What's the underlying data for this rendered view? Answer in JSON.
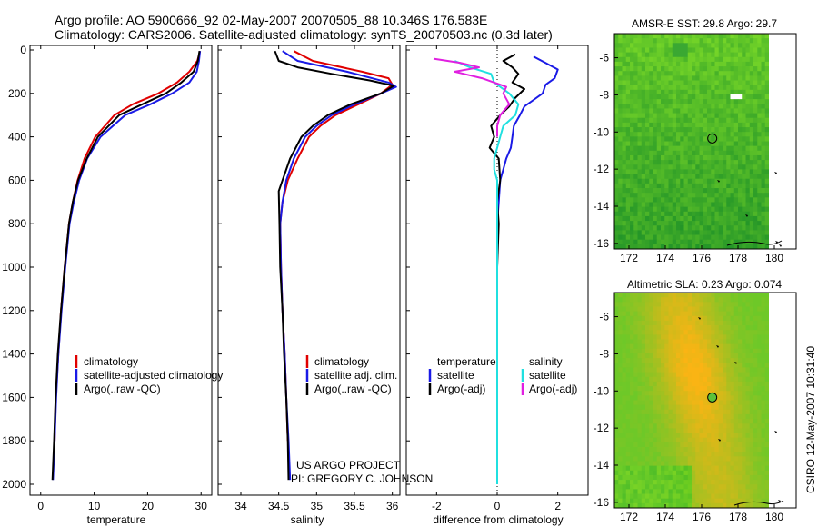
{
  "header": {
    "title_line1": "Argo profile: AO 5900666_92 02-May-2007 20070505_88 10.346S 176.583E",
    "title_line2": "Climatology: CARS2006. Satellite-adjusted climatology: synTS_20070503.nc (0.3d later)"
  },
  "side_label": "CSIRO 12-May-2007 10:31:40",
  "credit": {
    "line1": "US ARGO PROJECT",
    "line2": "PI: GREGORY C. JOHNSON"
  },
  "colors": {
    "climatology": "#e00000",
    "satellite": "#1a1ae6",
    "argo": "#000000",
    "sat_salinity": "#20e0e0",
    "argo_salinity": "#e020e0"
  },
  "chart_data": [
    {
      "type": "line",
      "id": "temperature",
      "xlabel": "temperature",
      "xlim": [
        -2,
        32
      ],
      "ylim": [
        2050,
        0
      ],
      "y_reversed": true,
      "xticks": [
        0,
        10,
        20,
        30
      ],
      "yticks": [
        0,
        200,
        400,
        600,
        800,
        1000,
        1200,
        1400,
        1600,
        1800,
        2000
      ],
      "legend": [
        "climatology",
        "satellite-adjusted climatology",
        "Argo(..raw -QC)"
      ],
      "series": [
        {
          "name": "climatology",
          "color": "#e00000",
          "depth": [
            5,
            50,
            100,
            150,
            200,
            250,
            300,
            400,
            500,
            600,
            700,
            800,
            1000,
            1200,
            1400,
            1600,
            1800
          ],
          "values": [
            29.8,
            29.3,
            27.8,
            25.5,
            22.0,
            17.2,
            13.8,
            10.2,
            8.2,
            6.9,
            6.0,
            5.3,
            4.5,
            3.8,
            3.3,
            2.8,
            2.6
          ]
        },
        {
          "name": "satellite-adjusted climatology",
          "color": "#1a1ae6",
          "depth": [
            5,
            50,
            100,
            150,
            200,
            250,
            300,
            400,
            500,
            600,
            700,
            800,
            1000,
            1200,
            1400,
            1600,
            1800,
            1980
          ],
          "values": [
            29.8,
            29.6,
            29.2,
            27.8,
            24.6,
            20.5,
            15.8,
            11.2,
            8.7,
            7.2,
            6.2,
            5.4,
            4.6,
            3.9,
            3.3,
            2.9,
            2.6,
            2.3
          ]
        },
        {
          "name": "Argo(..raw -QC)",
          "color": "#000000",
          "depth": [
            5,
            50,
            100,
            150,
            200,
            250,
            300,
            400,
            500,
            600,
            700,
            800,
            1000,
            1200,
            1400,
            1600,
            1800,
            1980
          ],
          "values": [
            29.7,
            29.4,
            28.6,
            26.3,
            23.4,
            19.0,
            14.7,
            10.7,
            8.6,
            7.0,
            6.0,
            5.3,
            4.5,
            3.8,
            3.2,
            2.8,
            2.5,
            2.2
          ]
        }
      ]
    },
    {
      "type": "line",
      "id": "salinity",
      "xlabel": "salinity",
      "xlim": [
        33.7,
        36.1
      ],
      "ylim": [
        2050,
        0
      ],
      "y_reversed": true,
      "xticks": [
        34,
        34.5,
        35,
        35.5,
        36
      ],
      "legend": [
        "climatology",
        "satellite adj. clim.",
        "Argo(..raw -QC)"
      ],
      "series": [
        {
          "name": "climatology",
          "color": "#e00000",
          "depth": [
            5,
            50,
            100,
            130,
            160,
            200,
            250,
            300,
            350,
            400,
            500,
            600,
            700,
            800,
            1000,
            1200,
            1400,
            1600,
            1800
          ],
          "values": [
            34.7,
            34.95,
            35.6,
            35.95,
            36.0,
            35.85,
            35.55,
            35.25,
            35.05,
            34.9,
            34.75,
            34.62,
            34.55,
            34.52,
            34.53,
            34.55,
            34.58,
            34.6,
            34.62
          ]
        },
        {
          "name": "satellite adj. clim.",
          "color": "#1a1ae6",
          "depth": [
            5,
            50,
            100,
            150,
            170,
            200,
            250,
            300,
            350,
            400,
            500,
            600,
            700,
            800,
            1000,
            1200,
            1400,
            1600,
            1800,
            1980
          ],
          "values": [
            34.55,
            34.75,
            35.4,
            35.95,
            36.05,
            35.85,
            35.5,
            35.2,
            35.0,
            34.85,
            34.7,
            34.6,
            34.55,
            34.52,
            34.53,
            34.55,
            34.58,
            34.6,
            34.63,
            34.65
          ]
        },
        {
          "name": "Argo(..raw -QC)",
          "color": "#000000",
          "depth": [
            5,
            50,
            80,
            110,
            140,
            165,
            200,
            250,
            300,
            350,
            400,
            500,
            600,
            650,
            800,
            1000,
            1200,
            1400,
            1600,
            1800,
            1980
          ],
          "values": [
            34.45,
            34.5,
            34.75,
            35.2,
            35.7,
            36.02,
            35.85,
            35.45,
            35.15,
            34.95,
            34.8,
            34.65,
            34.55,
            34.5,
            34.51,
            34.52,
            34.55,
            34.57,
            34.6,
            34.62,
            34.63
          ]
        }
      ]
    },
    {
      "type": "line",
      "id": "difference",
      "xlabel": "difference from climatology",
      "xlim": [
        -3.0,
        3.0
      ],
      "ylim": [
        2050,
        0
      ],
      "y_reversed": true,
      "xticks": [
        -2,
        0,
        2
      ],
      "legend_headers": [
        "temperature",
        "salinity"
      ],
      "legend": [
        "satellite",
        "Argo(-adj)",
        "satellite",
        "Argo(-adj)"
      ],
      "series": [
        {
          "name": "temperature satellite",
          "color": "#1a1ae6",
          "depth": [
            30,
            60,
            90,
            130,
            160,
            200,
            230,
            260,
            300,
            350,
            400,
            450,
            500,
            550,
            600,
            700,
            800,
            1000,
            1200,
            1400,
            1600,
            1800,
            1980
          ],
          "values": [
            1.2,
            1.6,
            2.0,
            1.9,
            1.6,
            1.5,
            1.2,
            0.9,
            0.75,
            0.55,
            0.5,
            0.45,
            0.3,
            0.2,
            0.1,
            0.05,
            0.0,
            0.0,
            0.0,
            0.0,
            0.0,
            0.0,
            0.0
          ]
        },
        {
          "name": "temperature Argo(-adj)",
          "color": "#000000",
          "depth": [
            20,
            50,
            80,
            110,
            150,
            180,
            220,
            260,
            300,
            350,
            400,
            450,
            500,
            600,
            700,
            800,
            1000
          ],
          "values": [
            0.6,
            0.2,
            0.5,
            0.7,
            0.5,
            0.9,
            0.6,
            0.4,
            0.1,
            -0.2,
            -0.1,
            -0.25,
            0.05,
            0.1,
            0.0,
            0.05,
            0.0
          ]
        },
        {
          "name": "salinity satellite",
          "color": "#20e0e0",
          "depth": [
            50,
            80,
            110,
            150,
            200,
            250,
            300,
            350,
            400,
            450,
            500,
            550,
            600,
            700,
            800,
            1000,
            1200,
            1400,
            1600,
            1800,
            2000
          ],
          "values": [
            -1.4,
            -0.9,
            -0.2,
            -0.1,
            0.4,
            0.7,
            0.6,
            0.2,
            0.1,
            0.0,
            -0.1,
            -0.1,
            0.0,
            0.0,
            0.0,
            0.0,
            0.0,
            0.0,
            0.0,
            0.0,
            0.0
          ]
        },
        {
          "name": "salinity Argo(-adj)",
          "color": "#e020e0",
          "depth": [
            40,
            60,
            80,
            100,
            130,
            170,
            200,
            250,
            300,
            350,
            400
          ],
          "values": [
            -2.1,
            -1.2,
            -0.6,
            -1.4,
            -0.5,
            0.3,
            0.2,
            0.4,
            0.1,
            0.0,
            0.0
          ]
        }
      ]
    },
    {
      "type": "heatmap",
      "id": "sst_map",
      "title": "AMSR-E SST: 29.8 Argo: 29.7",
      "xticks": [
        "172",
        "174",
        "176",
        "178",
        "180"
      ],
      "yticks": [
        "-6",
        "-8",
        "-10",
        "-12",
        "-14",
        "-16"
      ],
      "xlim": [
        171.2,
        181.2
      ],
      "ylim": [
        -16.3,
        -4.7
      ],
      "argo_position": {
        "lon": 176.583,
        "lat": -10.346
      }
    },
    {
      "type": "heatmap",
      "id": "sla_map",
      "title": "Altimetric SLA: 0.23 Argo: 0.074",
      "xticks": [
        "172",
        "174",
        "176",
        "178",
        "180"
      ],
      "yticks": [
        "-6",
        "-8",
        "-10",
        "-12",
        "-14",
        "-16"
      ],
      "xlim": [
        171.2,
        181.2
      ],
      "ylim": [
        -16.3,
        -4.7
      ],
      "argo_position": {
        "lon": 176.583,
        "lat": -10.346
      }
    }
  ]
}
